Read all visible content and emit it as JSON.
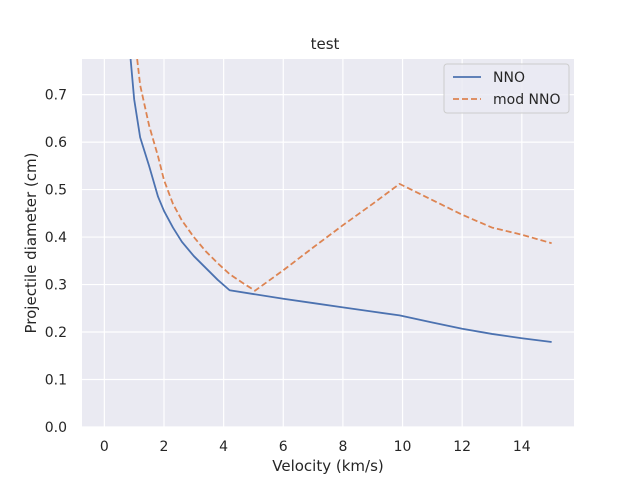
{
  "chart_data": {
    "type": "line",
    "title": "test",
    "xlabel": "Velocity (km/s)",
    "ylabel": "Projectile diameter (cm)",
    "xlim": [
      -0.75,
      15.75
    ],
    "ylim": [
      0.0,
      0.775
    ],
    "xticks": [
      0,
      2,
      4,
      6,
      8,
      10,
      12,
      14
    ],
    "yticks": [
      0.0,
      0.1,
      0.2,
      0.3,
      0.4,
      0.5,
      0.6,
      0.7
    ],
    "grid": true,
    "legend_position": "top-right",
    "series": [
      {
        "name": "NNO",
        "color": "#4c72b0",
        "dash": "solid",
        "x": [
          0.88,
          1.0,
          1.2,
          1.5,
          1.8,
          2.0,
          2.3,
          2.6,
          3.0,
          3.4,
          3.8,
          4.2,
          5.0,
          6.0,
          7.0,
          8.0,
          9.0,
          9.9,
          11.0,
          12.0,
          13.0,
          14.0,
          15.0
        ],
        "y": [
          0.775,
          0.69,
          0.61,
          0.55,
          0.485,
          0.455,
          0.42,
          0.39,
          0.36,
          0.335,
          0.31,
          0.288,
          0.28,
          0.27,
          0.261,
          0.252,
          0.243,
          0.235,
          0.22,
          0.207,
          0.196,
          0.187,
          0.179
        ]
      },
      {
        "name": "mod NNO",
        "color": "#dd8452",
        "dash": "dashed",
        "x": [
          1.1,
          1.2,
          1.5,
          1.8,
          2.0,
          2.3,
          2.6,
          3.0,
          3.4,
          3.8,
          4.2,
          4.6,
          5.05,
          6.0,
          7.0,
          8.0,
          9.0,
          9.9,
          11.0,
          12.0,
          13.0,
          14.0,
          15.0
        ],
        "y": [
          0.775,
          0.72,
          0.635,
          0.57,
          0.52,
          0.47,
          0.435,
          0.4,
          0.37,
          0.345,
          0.322,
          0.305,
          0.287,
          0.33,
          0.378,
          0.425,
          0.47,
          0.512,
          0.478,
          0.447,
          0.42,
          0.405,
          0.387
        ]
      }
    ]
  }
}
